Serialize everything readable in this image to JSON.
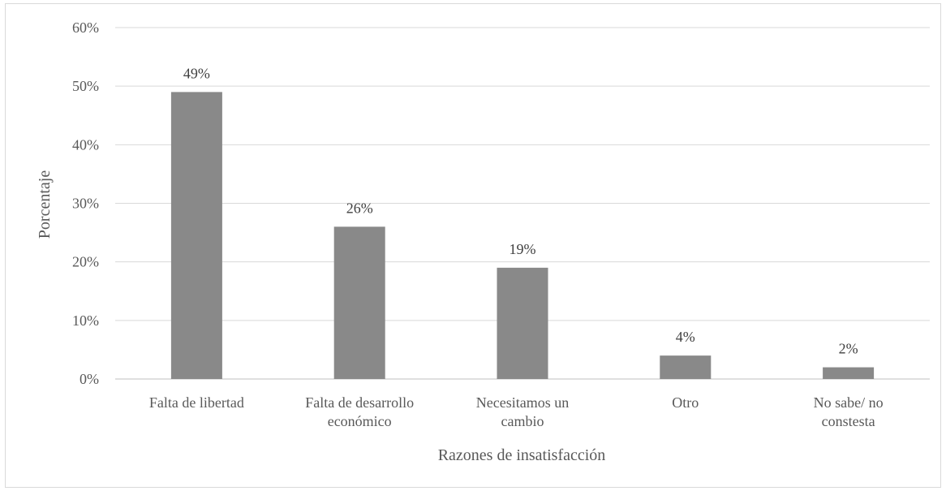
{
  "chart_data": {
    "type": "bar",
    "title": "",
    "xlabel": "Razones de insatisfacción",
    "ylabel": "Porcentaje",
    "categories": [
      [
        "Falta de libertad"
      ],
      [
        "Falta de desarrollo",
        "económico"
      ],
      [
        "Necesitamos un",
        "cambio"
      ],
      [
        "Otro"
      ],
      [
        "No sabe/ no",
        "constesta"
      ]
    ],
    "values": [
      49,
      26,
      19,
      4,
      2
    ],
    "data_labels": [
      "49%",
      "26%",
      "19%",
      "4%",
      "2%"
    ],
    "ylim": [
      0,
      60
    ],
    "yticks": [
      0,
      10,
      20,
      30,
      40,
      50,
      60
    ],
    "ytick_labels": [
      "0%",
      "10%",
      "20%",
      "30%",
      "40%",
      "50%",
      "60%"
    ],
    "grid": true,
    "legend": "none",
    "colors": {
      "bar": "#898989",
      "grid": "#d9d9d9",
      "axis": "#bfbfbf"
    }
  }
}
